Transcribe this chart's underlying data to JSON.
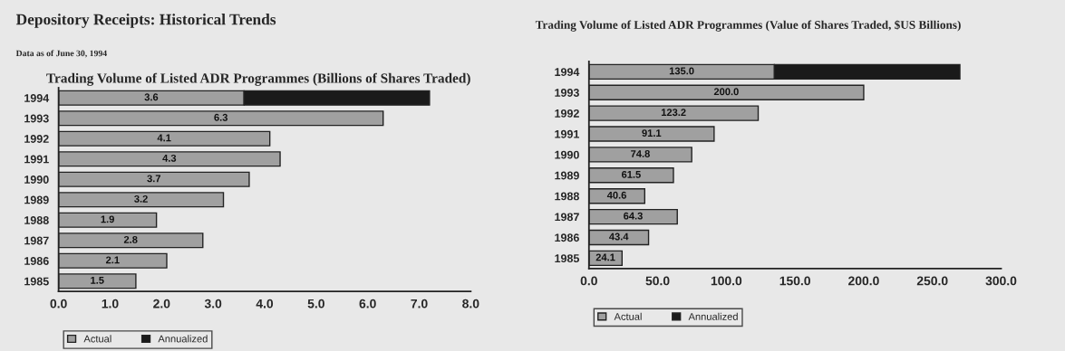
{
  "chart_data": [
    {
      "type": "bar",
      "orientation": "horizontal",
      "stacked": true,
      "title": "Depository Receipts: Historical Trends",
      "subtitle": "Data as of June 30, 1994",
      "annotations": [
        "Trading Volume of Listed ADR Programmes (Billions of Shares Traded)"
      ],
      "categories": [
        "1994",
        "1993",
        "1992",
        "1991",
        "1990",
        "1989",
        "1988",
        "1987",
        "1986",
        "1985"
      ],
      "series": [
        {
          "name": "Actual",
          "color": "#a0a0a0",
          "values": [
            3.6,
            6.3,
            4.1,
            4.3,
            3.7,
            3.2,
            1.9,
            2.8,
            2.1,
            1.5
          ],
          "value_labels": [
            "3.6",
            "6.3",
            "4.1",
            "4.3",
            "3.7",
            "3.2",
            "1.9",
            "2.8",
            "2.1",
            "1.5"
          ]
        },
        {
          "name": "Annualized",
          "color": "#1a1a1a",
          "values": [
            3.6,
            null,
            null,
            null,
            null,
            null,
            null,
            null,
            null,
            null
          ]
        }
      ],
      "xlim": [
        0,
        8
      ],
      "xticks": [
        {
          "value": 0,
          "label": "0.0"
        },
        {
          "value": 1,
          "label": "1.0"
        },
        {
          "value": 2,
          "label": "2.0"
        },
        {
          "value": 3,
          "label": "3.0"
        },
        {
          "value": 4,
          "label": "4.0"
        },
        {
          "value": 5,
          "label": "5.0"
        },
        {
          "value": 6,
          "label": "6.0"
        },
        {
          "value": 7,
          "label": "7.0"
        },
        {
          "value": 8,
          "label": "8.0"
        }
      ],
      "grid": false,
      "legend": "bottom left"
    },
    {
      "type": "bar",
      "orientation": "horizontal",
      "stacked": true,
      "title": "Trading Volume of Listed ADR Programmes (Value of Shares Traded, $US Billions)",
      "categories": [
        "1994",
        "1993",
        "1992",
        "1991",
        "1990",
        "1989",
        "1988",
        "1987",
        "1986",
        "1985"
      ],
      "series": [
        {
          "name": "Actual",
          "color": "#a0a0a0",
          "values": [
            135.0,
            200.0,
            123.2,
            91.1,
            74.8,
            61.5,
            40.6,
            64.3,
            43.4,
            24.1
          ],
          "value_labels": [
            "135.0",
            "200.0",
            "123.2",
            "91.1",
            "74.8",
            "61.5",
            "40.6",
            "64.3",
            "43.4",
            "24.1"
          ]
        },
        {
          "name": "Annualized",
          "color": "#1a1a1a",
          "values": [
            135.0,
            null,
            null,
            null,
            null,
            null,
            null,
            null,
            null,
            null
          ]
        }
      ],
      "xlim": [
        0,
        300
      ],
      "xticks": [
        {
          "value": 0,
          "label": "0.0"
        },
        {
          "value": 50,
          "label": "50.0"
        },
        {
          "value": 100,
          "label": "100.0"
        },
        {
          "value": 150,
          "label": "150.0"
        },
        {
          "value": 200,
          "label": "200.0"
        },
        {
          "value": 250,
          "label": "250.0"
        },
        {
          "value": 300,
          "label": "300.0"
        }
      ],
      "grid": false,
      "legend": "bottom left"
    }
  ]
}
